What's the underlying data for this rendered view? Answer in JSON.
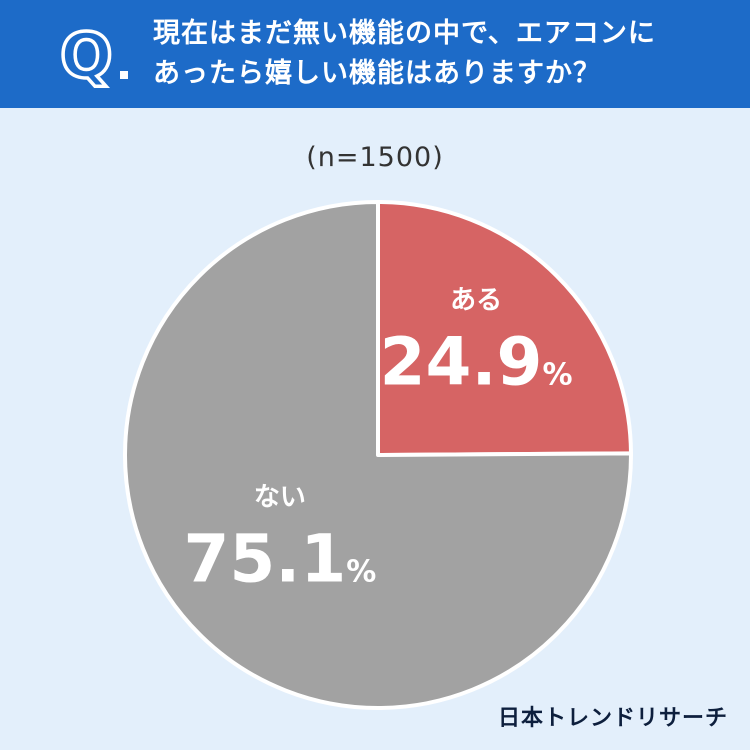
{
  "header": {
    "q_letter": "Q",
    "question_line1": "現在はまだ無い機能の中で、エアコンに",
    "question_line2": "あったら嬉しい機能はありますか？"
  },
  "sample_size": "(n=1500)",
  "chart_data": {
    "type": "pie",
    "title": "",
    "slices": [
      {
        "label": "ある",
        "value": 24.9,
        "value_text": "24.9",
        "unit": "%",
        "color": "#d66464"
      },
      {
        "label": "ない",
        "value": 75.1,
        "value_text": "75.1",
        "unit": "%",
        "color": "#a2a2a2"
      }
    ]
  },
  "brand": "日本トレンドリサーチ",
  "colors": {
    "header_bg": "#1d6bc8",
    "page_bg": "#e3effb",
    "outline": "#ffffff"
  }
}
